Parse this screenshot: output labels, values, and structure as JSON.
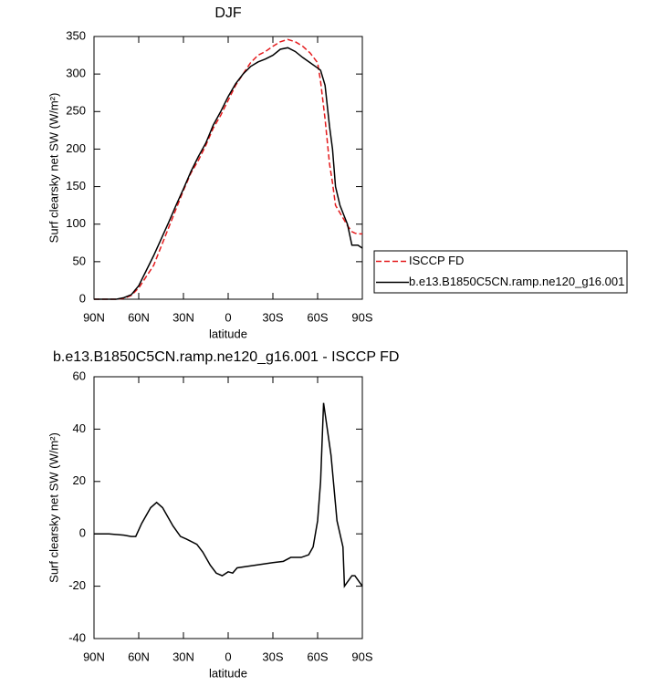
{
  "chart_data": [
    {
      "type": "line",
      "title": "DJF",
      "xlabel": "latitude",
      "ylabel": "Surf clearsky net SW (W/m²)",
      "x": [
        90,
        80,
        75,
        70,
        65,
        60,
        55,
        50,
        45,
        40,
        35,
        30,
        25,
        20,
        15,
        10,
        5,
        0,
        -5,
        -10,
        -15,
        -20,
        -25,
        -30,
        -35,
        -40,
        -45,
        -50,
        -55,
        -60,
        -62,
        -65,
        -68,
        -70,
        -72,
        -75,
        -78,
        -80,
        -83,
        -85,
        -87,
        -90
      ],
      "series": [
        {
          "name": "ISCCP FD",
          "color": "#e41a1c",
          "dashed": true,
          "values": [
            0,
            0,
            0,
            1,
            5,
            15,
            30,
            45,
            70,
            95,
            120,
            145,
            168,
            185,
            205,
            228,
            245,
            265,
            285,
            300,
            315,
            325,
            330,
            337,
            343,
            346,
            343,
            337,
            328,
            315,
            290,
            240,
            180,
            155,
            125,
            115,
            105,
            98,
            90,
            88,
            87,
            87
          ]
        },
        {
          "name": "b.e13.B1850C5CN.ramp.ne120_g16.001",
          "color": "#000000",
          "dashed": false,
          "values": [
            0,
            0,
            0,
            2,
            6,
            18,
            38,
            58,
            80,
            102,
            125,
            147,
            170,
            190,
            208,
            232,
            250,
            270,
            287,
            300,
            310,
            316,
            320,
            325,
            333,
            335,
            330,
            322,
            315,
            308,
            305,
            285,
            230,
            200,
            150,
            125,
            110,
            100,
            72,
            72,
            72,
            68
          ]
        }
      ],
      "xlim": [
        90,
        -90
      ],
      "xticks": [
        {
          "value": 90,
          "label": "90N"
        },
        {
          "value": 60,
          "label": "60N"
        },
        {
          "value": 30,
          "label": "30N"
        },
        0,
        {
          "value": -30,
          "label": "30S"
        },
        {
          "value": -60,
          "label": "60S"
        },
        {
          "value": -90,
          "label": "90S"
        }
      ],
      "ylim": [
        0,
        350
      ],
      "yticks": [
        0,
        50,
        100,
        150,
        200,
        250,
        300,
        350
      ],
      "legend": "right"
    },
    {
      "type": "line",
      "title": "b.e13.B1850C5CN.ramp.ne120_g16.001 - ISCCP FD",
      "xlabel": "latitude",
      "ylabel": "Surf clearsky net SW (W/m²)",
      "x": [
        90,
        80,
        70,
        65,
        62,
        58,
        52,
        48,
        44,
        37,
        32,
        28,
        21,
        17,
        12,
        8,
        4,
        0,
        -3,
        -6,
        -18,
        -30,
        -37,
        -42,
        -49,
        -54,
        -57,
        -60,
        -62,
        -64,
        -69,
        -73,
        -77,
        -78,
        -83,
        -85,
        -90
      ],
      "series": [
        {
          "color": "#000000",
          "dashed": false,
          "values": [
            0,
            0,
            -0.5,
            -1,
            -1,
            4,
            10,
            12,
            10,
            3,
            -1,
            -2,
            -4,
            -7,
            -12,
            -15,
            -16,
            -14.5,
            -15,
            -13,
            -12,
            -11,
            -10.5,
            -9,
            -9,
            -8,
            -5,
            5,
            20,
            50,
            30,
            5,
            -5,
            -20,
            -16,
            -16,
            -20
          ]
        }
      ],
      "xlim": [
        90,
        -90
      ],
      "xticks": [
        {
          "value": 90,
          "label": "90N"
        },
        {
          "value": 60,
          "label": "60N"
        },
        {
          "value": 30,
          "label": "30N"
        },
        0,
        {
          "value": -30,
          "label": "30S"
        },
        {
          "value": -60,
          "label": "60S"
        },
        {
          "value": -90,
          "label": "90S"
        }
      ],
      "ylim": [
        -40,
        60
      ],
      "yticks": [
        -40,
        -20,
        0,
        20,
        40,
        60
      ]
    }
  ]
}
